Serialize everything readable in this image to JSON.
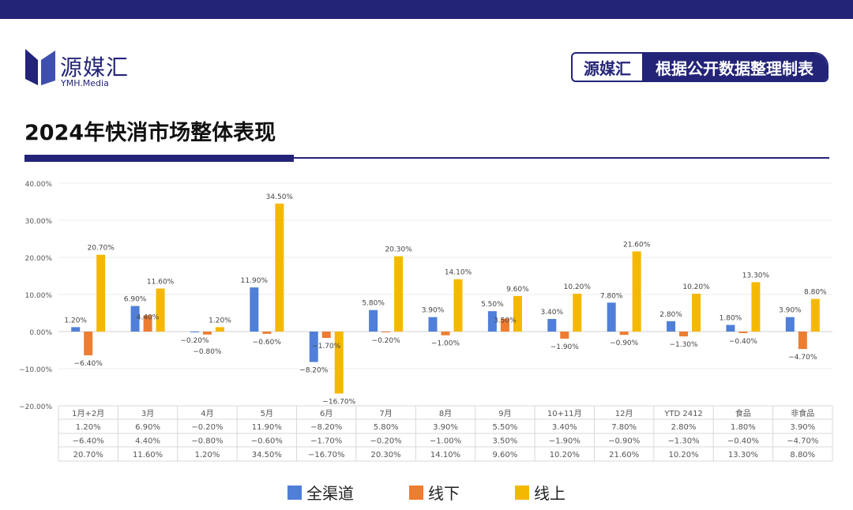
{
  "header": {
    "logo_text": "源媒汇",
    "logo_sub": "YMH.Media",
    "badge_left": "源媒汇",
    "badge_right": "根据公开数据整理制表"
  },
  "title": "2024年快消市场整体表现",
  "colors": {
    "navy": "#232478",
    "series": [
      "#4F7FD8",
      "#ED7D31",
      "#F5B800"
    ]
  },
  "chart_data": {
    "type": "bar",
    "title": "2024年快消市场整体表现",
    "categories": [
      "1月+2月",
      "3月",
      "4月",
      "5月",
      "6月",
      "7月",
      "8月",
      "9月",
      "10+11月",
      "12月",
      "YTD 2412",
      "食品",
      "非食品"
    ],
    "series": [
      {
        "name": "全渠道",
        "values": [
          1.2,
          6.9,
          -0.2,
          11.9,
          -8.2,
          5.8,
          3.9,
          5.5,
          3.4,
          7.8,
          2.8,
          1.8,
          3.9
        ]
      },
      {
        "name": "线下",
        "values": [
          -6.4,
          4.4,
          -0.8,
          -0.6,
          -1.7,
          -0.2,
          -1.0,
          3.5,
          -1.9,
          -0.9,
          -1.3,
          -0.4,
          -4.7
        ]
      },
      {
        "name": "线上",
        "values": [
          20.7,
          11.6,
          1.2,
          34.5,
          -16.7,
          20.3,
          14.1,
          9.6,
          10.2,
          21.6,
          10.2,
          13.3,
          8.8
        ]
      }
    ],
    "yticks": [
      "40.00%",
      "30.00%",
      "20.00%",
      "10.00%",
      "0.00%",
      "-10.00%",
      "-20.00%"
    ],
    "ylim": [
      -20,
      40
    ],
    "grid": true,
    "data_table": true,
    "legend_position": "bottom"
  }
}
